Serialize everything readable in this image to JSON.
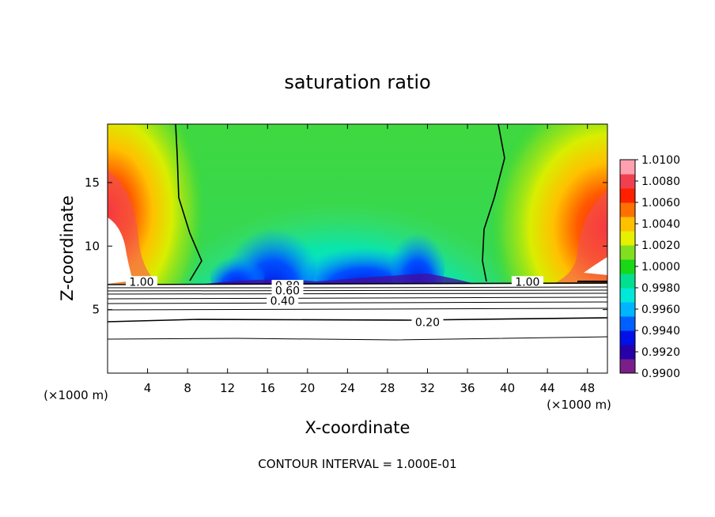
{
  "chart_data": {
    "type": "heatmap",
    "title": "saturation ratio",
    "xlabel": "X-coordinate",
    "ylabel": "Z-coordinate",
    "x_unit": "(×1000 m)",
    "x_ticks": [
      4,
      8,
      12,
      16,
      20,
      24,
      28,
      32,
      36,
      40,
      44,
      48
    ],
    "y_ticks": [
      5,
      10,
      15
    ],
    "xlim": [
      0,
      50
    ],
    "ylim": [
      0,
      19.6
    ],
    "footer": "CONTOUR INTERVAL = 1.000E-01",
    "colorbar": {
      "labels": [
        "1.0100",
        "1.0080",
        "1.0060",
        "1.0040",
        "1.0020",
        "1.0000",
        "0.9980",
        "0.9960",
        "0.9940",
        "0.9920",
        "0.9900"
      ],
      "range": [
        0.99,
        1.01
      ],
      "colors": [
        "#7a1f8a",
        "#2800a8",
        "#0010e8",
        "#0060ff",
        "#00b4ff",
        "#00e8d8",
        "#00e090",
        "#18d818",
        "#80e020",
        "#e6f000",
        "#ffc000",
        "#ff7000",
        "#ff2000",
        "#f04050",
        "#ffa0b0"
      ]
    },
    "contour_labels": [
      {
        "text": "1.00",
        "x": 3.4,
        "z": 7.2
      },
      {
        "text": "1.00",
        "x": 42.0,
        "z": 7.2
      },
      {
        "text": "0.80",
        "x": 18.0,
        "z": 6.9
      },
      {
        "text": "0.60",
        "x": 18.0,
        "z": 6.5
      },
      {
        "text": "0.40",
        "x": 17.5,
        "z": 5.7
      },
      {
        "text": "0.20",
        "x": 32.0,
        "z": 4.0
      }
    ]
  },
  "icons": {
    "colorbar": "color-scale",
    "contours": "contour-lines"
  }
}
